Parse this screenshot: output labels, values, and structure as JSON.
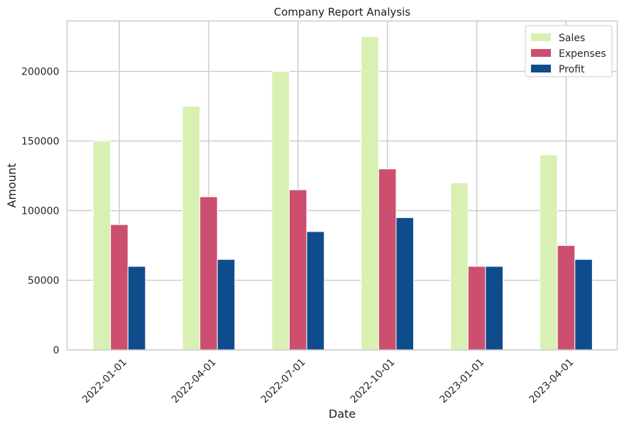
{
  "chart_data": {
    "type": "bar",
    "title": "Company Report Analysis",
    "xlabel": "Date",
    "ylabel": "Amount",
    "categories": [
      "2022-01-01",
      "2022-04-01",
      "2022-07-01",
      "2022-10-01",
      "2023-01-01",
      "2023-04-01"
    ],
    "series": [
      {
        "name": "Sales",
        "color": "#d9f0b3",
        "values": [
          150000,
          175000,
          200000,
          225000,
          120000,
          140000
        ]
      },
      {
        "name": "Expenses",
        "color": "#cc4f70",
        "values": [
          90000,
          110000,
          115000,
          130000,
          60000,
          75000
        ]
      },
      {
        "name": "Profit",
        "color": "#0f4c8c",
        "values": [
          60000,
          65000,
          85000,
          95000,
          60000,
          65000
        ]
      }
    ],
    "yticks": [
      0,
      50000,
      100000,
      150000,
      200000
    ],
    "ylim": [
      0,
      236250
    ],
    "grid": true,
    "legend_position": "top-right"
  }
}
